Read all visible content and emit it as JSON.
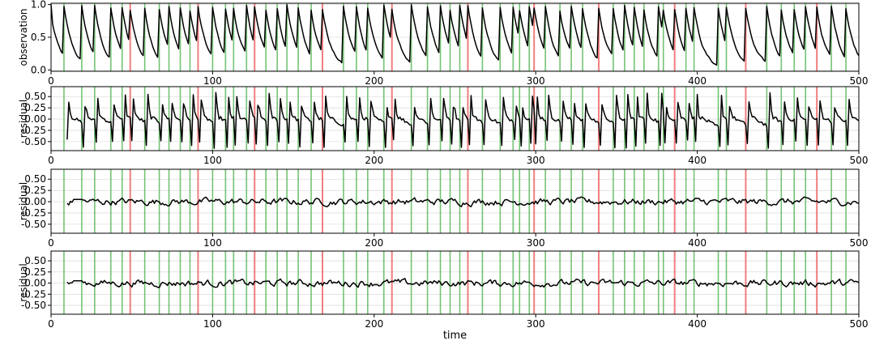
{
  "chart_data": {
    "type": "line",
    "xlabel": "time",
    "xlim": [
      0,
      500
    ],
    "xticks": [
      "0",
      "100",
      "200",
      "300",
      "400",
      "500"
    ],
    "colors": {
      "line": "#000000",
      "green_marker": "#5cb85c",
      "red_marker": "#f07070",
      "grid": "#b0b0b0"
    },
    "green_lines": [
      8,
      19,
      27,
      37,
      44,
      58,
      67,
      73,
      80,
      86,
      100,
      108,
      113,
      121,
      133,
      140,
      146,
      153,
      161,
      181,
      189,
      196,
      206,
      223,
      233,
      241,
      247,
      253,
      267,
      278,
      286,
      290,
      296,
      306,
      315,
      322,
      329,
      348,
      355,
      361,
      367,
      376,
      379,
      393,
      398,
      413,
      418,
      443,
      452,
      460,
      467,
      483,
      492
    ],
    "red_lines": [
      49,
      91,
      126,
      168,
      211,
      258,
      299,
      339,
      386,
      430,
      474
    ],
    "panels": [
      {
        "ylabel": "observation",
        "ylim": [
          -0.02,
          1.02
        ],
        "yticks": [
          {
            "v": 0.0,
            "label": "0.0"
          },
          {
            "v": 0.5,
            "label": "0.5"
          },
          {
            "v": 1.0,
            "label": "1.0"
          }
        ],
        "series": {
          "x_start": 0,
          "kind": "decay_pulses",
          "rate": 0.18,
          "values_shown": "pulses to ~1.0 at each event, exponential decay toward 0.0"
        }
      },
      {
        "ylabel": "residual",
        "ylim": [
          -0.7,
          0.72
        ],
        "yticks": [
          {
            "v": 0.5,
            "label": "0.50"
          },
          {
            "v": 0.25,
            "label": "0.25"
          },
          {
            "v": 0.0,
            "label": "0.00"
          },
          {
            "v": -0.25,
            "label": "-0.25"
          },
          {
            "v": -0.5,
            "label": "-0.50"
          }
        ],
        "series": {
          "x_start": 10,
          "kind": "spiky_residual",
          "range": [
            -0.65,
            0.62
          ]
        }
      },
      {
        "ylabel": "residual",
        "ylim": [
          -0.7,
          0.72
        ],
        "yticks": [
          {
            "v": 0.5,
            "label": "0.50"
          },
          {
            "v": 0.25,
            "label": "0.25"
          },
          {
            "v": 0.0,
            "label": "0.00"
          },
          {
            "v": -0.25,
            "label": "-0.25"
          },
          {
            "v": -0.5,
            "label": "-0.50"
          }
        ],
        "series": {
          "x_start": 10,
          "kind": "small_residual",
          "range": [
            -0.15,
            0.15
          ]
        }
      },
      {
        "ylabel": "residual",
        "ylim": [
          -0.7,
          0.72
        ],
        "yticks": [
          {
            "v": 0.5,
            "label": "0.50"
          },
          {
            "v": 0.25,
            "label": "0.25"
          },
          {
            "v": 0.0,
            "label": "0.00"
          },
          {
            "v": -0.25,
            "label": "-0.25"
          },
          {
            "v": -0.5,
            "label": "-0.50"
          }
        ],
        "series": {
          "x_start": 10,
          "kind": "small_residual",
          "range": [
            -0.15,
            0.15
          ]
        }
      }
    ]
  }
}
